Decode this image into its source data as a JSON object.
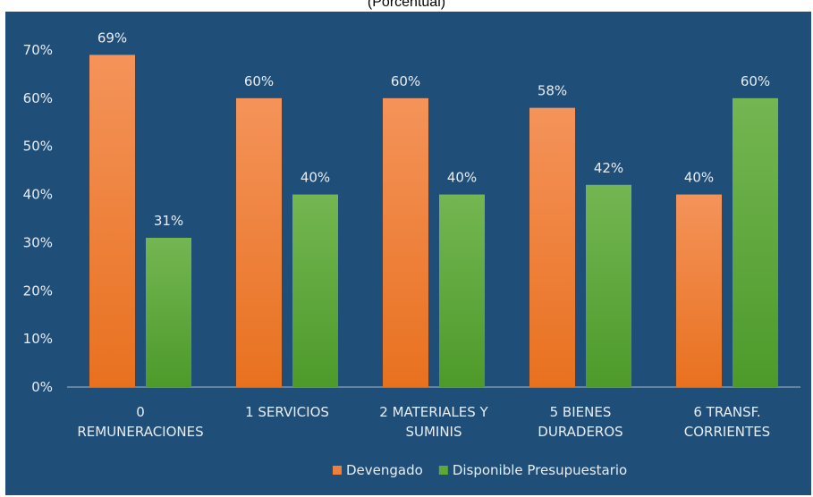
{
  "subtitle": "(Porcentual)",
  "chart_data": {
    "type": "bar",
    "categories": [
      [
        "0",
        "REMUNERACIONES"
      ],
      [
        "1  SERVICIOS"
      ],
      [
        "2  MATERIALES Y",
        "SUMINIS"
      ],
      [
        "5  BIENES",
        "DURADEROS"
      ],
      [
        "6  TRANSF.",
        "CORRIENTES"
      ]
    ],
    "series": [
      {
        "name": "Devengado",
        "values": [
          69,
          60,
          60,
          58,
          40
        ],
        "labels": [
          "69%",
          "60%",
          "60%",
          "58%",
          "40%"
        ],
        "color": "#f07f3c"
      },
      {
        "name": "Disponible Presupuestario",
        "values": [
          31,
          40,
          40,
          42,
          60
        ],
        "labels": [
          "31%",
          "40%",
          "40%",
          "42%",
          "60%"
        ],
        "color": "#5ea83a"
      }
    ],
    "yticks": [
      "0%",
      "10%",
      "20%",
      "30%",
      "40%",
      "50%",
      "60%",
      "70%"
    ],
    "ylim": [
      0,
      70
    ],
    "grid": false,
    "legend": "bottom-center",
    "background": "#1f4e79"
  }
}
